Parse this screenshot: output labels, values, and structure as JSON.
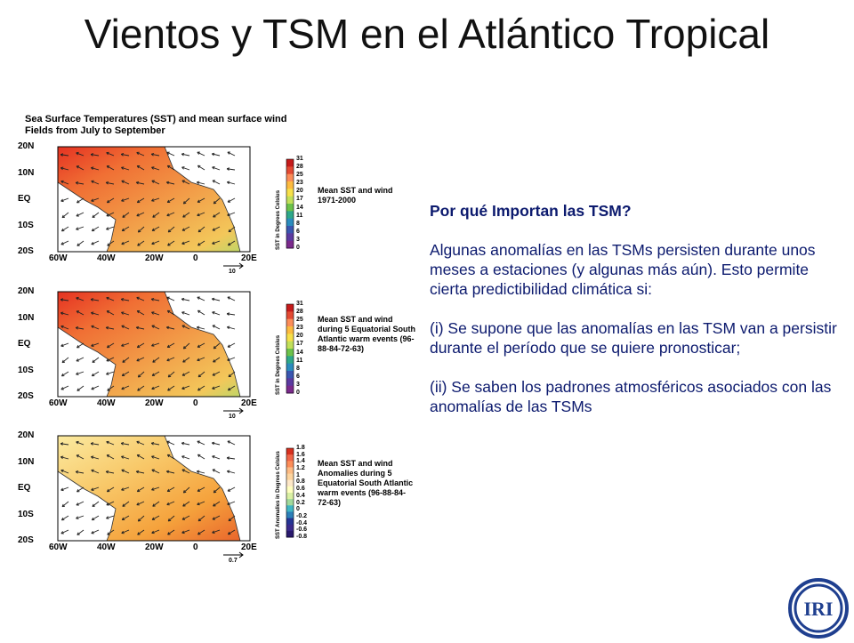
{
  "title": "Vientos y TSM en el Atlántico Tropical",
  "figure": {
    "header": "Sea Surface Temperatures (SST) and mean surface wind Fields from July to September",
    "lat_labels": [
      "20N",
      "10N",
      "EQ",
      "10S",
      "20S"
    ],
    "lon_labels": [
      "60W",
      "40W",
      "20W",
      "0",
      "20E"
    ],
    "panels": [
      {
        "caption": "Mean SST and wind 1971-2000",
        "colorbar_title": "SST in Degrees Celsius",
        "colorbar_ticks": [
          "31",
          "28",
          "25",
          "23",
          "20",
          "17",
          "14",
          "11",
          "8",
          "6",
          "3",
          "0"
        ],
        "scale_label": "10"
      },
      {
        "caption": "Mean SST and wind during 5 Equatorial South Atlantic warm events (96-88-84-72-63)",
        "colorbar_title": "SST in Degrees Celsius",
        "colorbar_ticks": [
          "31",
          "28",
          "25",
          "23",
          "20",
          "17",
          "14",
          "11",
          "8",
          "6",
          "3",
          "0"
        ],
        "scale_label": "10"
      },
      {
        "caption": "Mean SST and wind Anomalies during 5 Equatorial South Atlantic warm events (96-88-84-72-63)",
        "colorbar_title": "SST Anomalies in Degrees Celsius",
        "colorbar_ticks": [
          "1.8",
          "1.6",
          "1.4",
          "1.2",
          "1",
          "0.8",
          "0.6",
          "0.4",
          "0.2",
          "0",
          "-0.2",
          "-0.4",
          "-0.6",
          "-0.8"
        ],
        "scale_label": "0.7"
      }
    ]
  },
  "text": {
    "question": "Por qué Importan las TSM?",
    "para1": "Algunas anomalías en las TSMs persisten durante unos meses a estaciones (y algunas más aún).  Esto permite cierta predictibilidad climática si:",
    "para2": "(i) Se supone que las anomalías en las TSM van a persistir durante el período que se quiere pronosticar;",
    "para3": "(ii) Se saben los padrones atmosféricos asociados con las anomalías de las TSMs"
  },
  "logo": {
    "text": "IRI",
    "color": "#1f3f8f"
  }
}
